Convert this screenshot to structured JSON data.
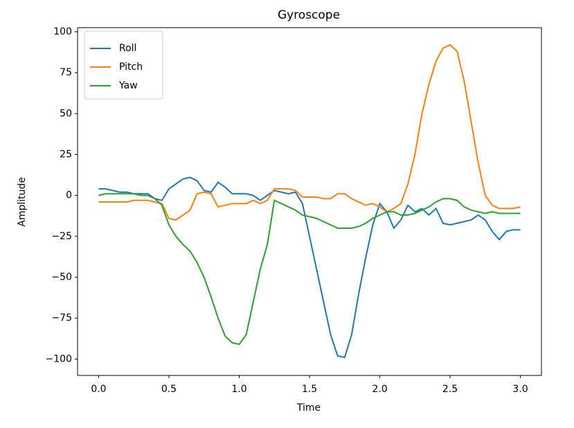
{
  "chart_data": {
    "type": "line",
    "title": "Gyroscope",
    "x_label": "Time",
    "y_label": "Amplitude",
    "x": [
      0,
      0.05,
      0.1,
      0.15,
      0.2,
      0.25,
      0.3,
      0.35,
      0.4,
      0.45,
      0.5,
      0.55,
      0.6,
      0.65,
      0.7,
      0.75,
      0.8,
      0.85,
      0.9,
      0.95,
      1.0,
      1.05,
      1.1,
      1.15,
      1.2,
      1.25,
      1.3,
      1.35,
      1.4,
      1.45,
      1.5,
      1.55,
      1.6,
      1.65,
      1.7,
      1.75,
      1.8,
      1.85,
      1.9,
      1.95,
      2.0,
      2.05,
      2.1,
      2.15,
      2.2,
      2.25,
      2.3,
      2.35,
      2.4,
      2.45,
      2.5,
      2.55,
      2.6,
      2.65,
      2.7,
      2.75,
      2.8,
      2.85,
      2.9,
      2.95,
      3.0
    ],
    "series": [
      {
        "name": "Roll",
        "color": "#1f77b4",
        "values": [
          4,
          4,
          3,
          2,
          2,
          1,
          1,
          1,
          -2,
          -3,
          4,
          7,
          10,
          11,
          9,
          3,
          2,
          8,
          5,
          1,
          1,
          1,
          0,
          -3,
          0,
          3,
          2,
          1,
          2,
          -5,
          -25,
          -45,
          -65,
          -85,
          -98,
          -99,
          -85,
          -60,
          -38,
          -18,
          -5,
          -10,
          -20,
          -15,
          -6,
          -10,
          -8,
          -12,
          -8,
          -17,
          -18,
          -17,
          -16,
          -15,
          -12,
          -15,
          -22,
          -27,
          -22,
          -21,
          -21
        ]
      },
      {
        "name": "Pitch",
        "color": "#ff7f0e",
        "values": [
          -4,
          -4,
          -4,
          -4,
          -4,
          -3,
          -3,
          -3,
          -4,
          -5,
          -14,
          -15,
          -12,
          -9,
          1,
          2,
          1,
          -7,
          -6,
          -5,
          -5,
          -5,
          -3,
          -5,
          -3,
          4,
          4,
          4,
          3,
          -1,
          -1,
          -1,
          -2,
          -2,
          1,
          1,
          -2,
          -4,
          -6,
          -5,
          -7,
          -10,
          -8,
          -5,
          7,
          25,
          50,
          68,
          82,
          90,
          92,
          88,
          70,
          45,
          20,
          0,
          -6,
          -8,
          -8,
          -8,
          -7
        ]
      },
      {
        "name": "Yaw",
        "color": "#2ca02c",
        "values": [
          0,
          1,
          1,
          1,
          1,
          1,
          0,
          0,
          -2,
          -6,
          -18,
          -25,
          -30,
          -34,
          -41,
          -50,
          -62,
          -75,
          -86,
          -90,
          -91,
          -85,
          -65,
          -45,
          -30,
          -3,
          -5,
          -7,
          -9,
          -12,
          -13,
          -14,
          -16,
          -18,
          -20,
          -20,
          -20,
          -19,
          -17,
          -14,
          -12,
          -10,
          -10,
          -12,
          -12,
          -11,
          -9,
          -7,
          -4,
          -2,
          -2,
          -3,
          -7,
          -9,
          -10,
          -11,
          -10,
          -11,
          -11,
          -11,
          -11
        ]
      }
    ],
    "xlim": [
      -0.15,
      3.15
    ],
    "ylim": [
      -110,
      102.5
    ],
    "xticks": [
      {
        "value": 0,
        "label": "0.0"
      },
      0.5,
      {
        "value": 1,
        "label": "1.0"
      },
      1.5,
      {
        "value": 2,
        "label": "2.0"
      },
      2.5,
      {
        "value": 3,
        "label": "3.0"
      }
    ],
    "yticks": [
      {
        "value": -100,
        "label": "−100"
      },
      {
        "value": -75,
        "label": "−75"
      },
      {
        "value": -50,
        "label": "−50"
      },
      {
        "value": -25,
        "label": "−25"
      },
      0,
      25,
      50,
      75,
      100
    ],
    "legend": "upper left",
    "grid": false
  }
}
